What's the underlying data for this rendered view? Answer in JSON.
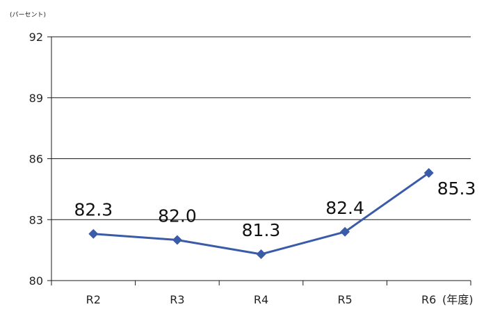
{
  "chart_data": {
    "type": "line",
    "y_unit_label": "(パーセント)",
    "x_unit_label": "(年度)",
    "categories": [
      "R2",
      "R3",
      "R4",
      "R5",
      "R6"
    ],
    "series": [
      {
        "values": [
          82.3,
          82.0,
          81.3,
          82.4,
          85.3
        ],
        "color": "#3a5ba8"
      }
    ],
    "data_labels": [
      "82.3",
      "82.0",
      "81.3",
      "82.4",
      "85.3"
    ],
    "ylim": [
      80,
      92
    ],
    "yticks": [
      80,
      83,
      86,
      89,
      92
    ],
    "ytick_labels": [
      "80",
      "83",
      "86",
      "89",
      "92"
    ],
    "grid": true,
    "legend": "none"
  }
}
